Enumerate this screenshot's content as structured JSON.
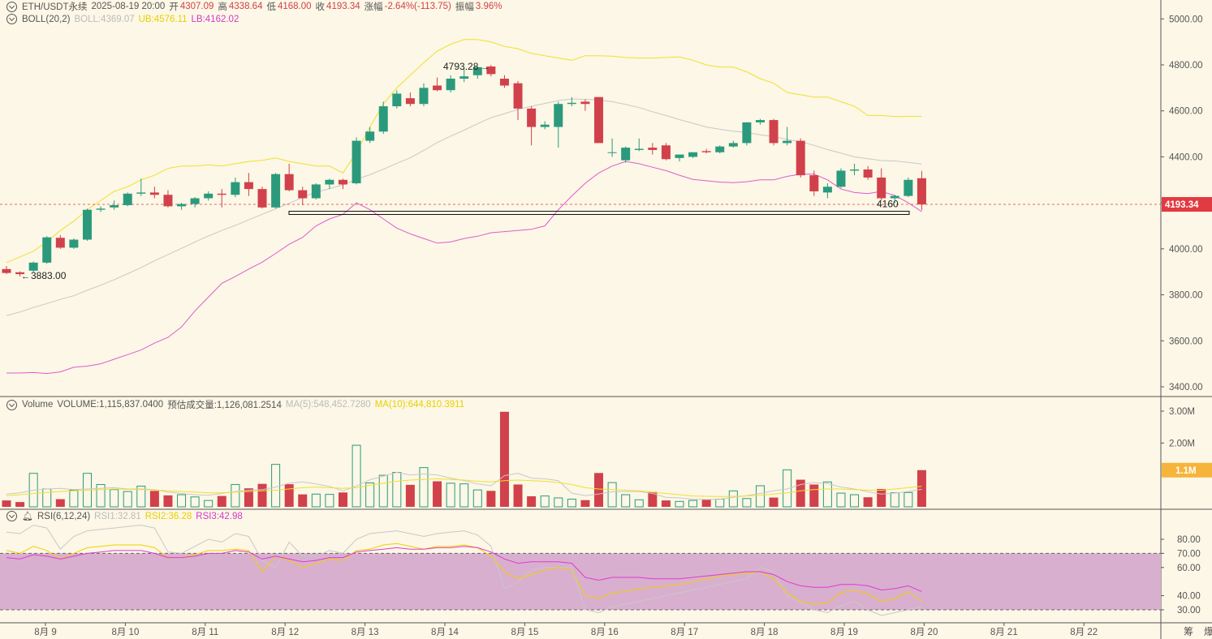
{
  "header": {
    "symbol": "ETH/USDT永续",
    "datetime": "2025-08-19 20:00",
    "open_label": "开",
    "open": "4307.09",
    "high_label": "高",
    "high": "4338.64",
    "low_label": "低",
    "low": "4168.00",
    "close_label": "收",
    "close": "4193.34",
    "change_label": "涨幅",
    "change": "-2.64%(-113.75)",
    "amp_label": "振幅",
    "amp": "3.96%"
  },
  "boll": {
    "label": "BOLL(20,2)",
    "mid": "BOLL:4369.07",
    "ub": "UB:4576.11",
    "lb": "LB:4162.02"
  },
  "volume": {
    "label": "Volume",
    "vol": "VOLUME:1,115,837.0400",
    "est": "预估成交量:1,126,081.2514",
    "ma5": "MA(5):548,452.7280",
    "ma10": "MA(10):644,810.3911"
  },
  "rsi": {
    "label": "RSI(6,12,24)",
    "r1": "RSI1:32.81",
    "r2": "RSI2:36.28",
    "r3": "RSI3:42.98"
  },
  "colors": {
    "up": "#2b9a7c",
    "down": "#d1414b",
    "mid": "#c8c8c8",
    "ub": "#f0e030",
    "lb": "#de5bd2",
    "price_tag": "#e23a42",
    "vol_tag": "#f6b43a",
    "rsi_band": "#d9afcf",
    "rsi1": "#c8c8c8",
    "rsi2": "#f0d000",
    "rsi3": "#de3bd0",
    "bg": "#fcf7e6"
  },
  "chart_data": {
    "type": "candlestick",
    "price_axis": {
      "ylim": [
        3380,
        5050
      ],
      "ticks": [
        "5000.00",
        "4800.00",
        "4600.00",
        "4400.00",
        "4200.00",
        "4000.00",
        "3800.00",
        "3600.00",
        "3400.00"
      ]
    },
    "volume_axis": {
      "ylim": [
        0,
        3100000
      ],
      "ticks": [
        "3.00M",
        "2.00M"
      ],
      "current_label": "1.1M"
    },
    "rsi_axis": {
      "ylim": [
        20,
        90
      ],
      "ticks": [
        "80.00",
        "70.00",
        "60.00",
        "40.00",
        "30.00"
      ],
      "band": [
        30,
        70
      ]
    },
    "x_labels": [
      "8月 9",
      "8月 10",
      "8月 11",
      "8月 12",
      "8月 13",
      "8月 14",
      "8月 15",
      "8月 16",
      "8月 17",
      "8月 18",
      "8月 19",
      "8月 20",
      "8月 21",
      "8月 22"
    ],
    "right_bottom_labels": [
      "筹",
      "爆"
    ],
    "current_price": "4193.34",
    "annotations": {
      "high": "4793.28",
      "low": "3883.00",
      "support_label": "4160"
    },
    "candles": [
      [
        3912,
        3925,
        3890,
        3895
      ],
      [
        3898,
        3902,
        3880,
        3890
      ],
      [
        3905,
        3945,
        3900,
        3940
      ],
      [
        3940,
        4055,
        3935,
        4050
      ],
      [
        4048,
        4060,
        4000,
        4005
      ],
      [
        4005,
        4045,
        4000,
        4040
      ],
      [
        4040,
        4175,
        4035,
        4170
      ],
      [
        4170,
        4185,
        4160,
        4175
      ],
      [
        4180,
        4210,
        4170,
        4190
      ],
      [
        4190,
        4245,
        4185,
        4240
      ],
      [
        4240,
        4305,
        4230,
        4245
      ],
      [
        4245,
        4270,
        4220,
        4235
      ],
      [
        4235,
        4255,
        4180,
        4185
      ],
      [
        4185,
        4200,
        4170,
        4195
      ],
      [
        4195,
        4225,
        4180,
        4220
      ],
      [
        4220,
        4250,
        4210,
        4240
      ],
      [
        4240,
        4260,
        4180,
        4235
      ],
      [
        4235,
        4310,
        4225,
        4290
      ],
      [
        4290,
        4330,
        4230,
        4260
      ],
      [
        4260,
        4270,
        4175,
        4180
      ],
      [
        4180,
        4330,
        4175,
        4325
      ],
      [
        4325,
        4370,
        4250,
        4255
      ],
      [
        4255,
        4270,
        4190,
        4220
      ],
      [
        4220,
        4285,
        4215,
        4280
      ],
      [
        4280,
        4305,
        4260,
        4300
      ],
      [
        4300,
        4305,
        4260,
        4280
      ],
      [
        4285,
        4485,
        4280,
        4470
      ],
      [
        4470,
        4530,
        4460,
        4510
      ],
      [
        4510,
        4640,
        4500,
        4620
      ],
      [
        4620,
        4690,
        4610,
        4675
      ],
      [
        4655,
        4680,
        4620,
        4630
      ],
      [
        4630,
        4720,
        4620,
        4700
      ],
      [
        4710,
        4745,
        4685,
        4690
      ],
      [
        4690,
        4755,
        4680,
        4740
      ],
      [
        4740,
        4785,
        4725,
        4750
      ],
      [
        4755,
        4790,
        4740,
        4790
      ],
      [
        4793,
        4800,
        4750,
        4760
      ],
      [
        4740,
        4755,
        4700,
        4710
      ],
      [
        4720,
        4730,
        4560,
        4610
      ],
      [
        4610,
        4620,
        4450,
        4530
      ],
      [
        4530,
        4555,
        4520,
        4540
      ],
      [
        4530,
        4640,
        4440,
        4630
      ],
      [
        4630,
        4660,
        4620,
        4635
      ],
      [
        4640,
        4650,
        4600,
        4630
      ],
      [
        4660,
        4660,
        4460,
        4460
      ],
      [
        4420,
        4480,
        4400,
        4420
      ],
      [
        4385,
        4445,
        4375,
        4440
      ],
      [
        4430,
        4480,
        4425,
        4435
      ],
      [
        4440,
        4460,
        4410,
        4430
      ],
      [
        4450,
        4460,
        4385,
        4390
      ],
      [
        4395,
        4410,
        4380,
        4410
      ],
      [
        4400,
        4420,
        4395,
        4420
      ],
      [
        4425,
        4435,
        4415,
        4420
      ],
      [
        4420,
        4450,
        4415,
        4445
      ],
      [
        4445,
        4470,
        4440,
        4460
      ],
      [
        4460,
        4550,
        4450,
        4550
      ],
      [
        4550,
        4565,
        4540,
        4560
      ],
      [
        4560,
        4565,
        4450,
        4460
      ],
      [
        4460,
        4530,
        4450,
        4470
      ],
      [
        4470,
        4480,
        4310,
        4320
      ],
      [
        4320,
        4340,
        4230,
        4250
      ],
      [
        4245,
        4285,
        4220,
        4270
      ],
      [
        4270,
        4350,
        4265,
        4340
      ],
      [
        4340,
        4370,
        4320,
        4345
      ],
      [
        4345,
        4360,
        4300,
        4310
      ],
      [
        4310,
        4350,
        4210,
        4220
      ],
      [
        4220,
        4235,
        4200,
        4230
      ],
      [
        4230,
        4310,
        4225,
        4300
      ],
      [
        4307,
        4339,
        4168,
        4193
      ]
    ],
    "boll_mid": [
      3710,
      3725,
      3745,
      3762,
      3780,
      3796,
      3820,
      3842,
      3866,
      3892,
      3918,
      3948,
      3975,
      4002,
      4030,
      4056,
      4080,
      4102,
      4126,
      4150,
      4174,
      4198,
      4224,
      4246,
      4262,
      4278,
      4302,
      4322,
      4346,
      4372,
      4396,
      4428,
      4462,
      4490,
      4516,
      4544,
      4570,
      4588,
      4606,
      4620,
      4632,
      4645,
      4652,
      4650,
      4648,
      4640,
      4628,
      4614,
      4596,
      4580,
      4562,
      4546,
      4530,
      4520,
      4512,
      4506,
      4496,
      4488,
      4476,
      4466,
      4450,
      4432,
      4416,
      4400,
      4392,
      4384,
      4382,
      4376,
      4369
    ],
    "boll_ub": [
      3940,
      3965,
      3990,
      4030,
      4080,
      4120,
      4170,
      4210,
      4250,
      4270,
      4300,
      4320,
      4350,
      4360,
      4360,
      4365,
      4360,
      4370,
      4380,
      4385,
      4395,
      4380,
      4370,
      4360,
      4360,
      4330,
      4420,
      4530,
      4630,
      4700,
      4755,
      4810,
      4860,
      4890,
      4910,
      4910,
      4900,
      4880,
      4870,
      4850,
      4840,
      4830,
      4820,
      4840,
      4840,
      4838,
      4832,
      4830,
      4830,
      4832,
      4835,
      4820,
      4800,
      4790,
      4790,
      4770,
      4740,
      4720,
      4680,
      4670,
      4660,
      4660,
      4640,
      4620,
      4580,
      4580,
      4575,
      4576,
      4576
    ],
    "boll_lb": [
      3460,
      3460,
      3462,
      3458,
      3465,
      3485,
      3490,
      3500,
      3520,
      3540,
      3560,
      3590,
      3615,
      3660,
      3730,
      3790,
      3850,
      3880,
      3912,
      3942,
      3980,
      4020,
      4050,
      4100,
      4130,
      4150,
      4200,
      4170,
      4130,
      4090,
      4065,
      4045,
      4025,
      4030,
      4045,
      4055,
      4070,
      4075,
      4080,
      4085,
      4100,
      4170,
      4230,
      4285,
      4330,
      4360,
      4380,
      4370,
      4355,
      4340,
      4320,
      4302,
      4296,
      4290,
      4288,
      4292,
      4300,
      4300,
      4315,
      4325,
      4325,
      4300,
      4260,
      4245,
      4240,
      4250,
      4232,
      4200,
      4162
    ],
    "volume": [
      200000,
      150000,
      1050000,
      560000,
      240000,
      520000,
      1050000,
      700000,
      540000,
      480000,
      650000,
      500000,
      360000,
      380000,
      310000,
      200000,
      340000,
      700000,
      580000,
      720000,
      1330000,
      710000,
      390000,
      400000,
      390000,
      450000,
      1930000,
      750000,
      990000,
      1080000,
      690000,
      1230000,
      800000,
      740000,
      720000,
      530000,
      500000,
      2980000,
      700000,
      330000,
      340000,
      280000,
      240000,
      210000,
      1060000,
      760000,
      380000,
      220000,
      470000,
      200000,
      170000,
      200000,
      230000,
      240000,
      500000,
      260000,
      660000,
      290000,
      1160000,
      850000,
      700000,
      780000,
      430000,
      380000,
      300000,
      560000,
      440000,
      450000,
      1150000
    ],
    "vol_ma5": [
      400000,
      440000,
      520000,
      560000,
      580000,
      540000,
      560000,
      580000,
      600000,
      560000,
      560000,
      540000,
      460000,
      420000,
      380000,
      360000,
      420000,
      480000,
      520000,
      540000,
      620000,
      740000,
      780000,
      720000,
      640000,
      500000,
      650000,
      850000,
      960000,
      1080000,
      1000000,
      1030000,
      1000000,
      900000,
      820000,
      720000,
      660000,
      980000,
      1050000,
      900000,
      880000,
      820000,
      430000,
      350000,
      400000,
      470000,
      480000,
      480000,
      420000,
      300000,
      280000,
      240000,
      230000,
      240000,
      300000,
      350000,
      420000,
      500000,
      560000,
      700000,
      760000,
      730000,
      620000,
      560000,
      470000,
      400000,
      430000,
      480000,
      550000
    ],
    "vol_ma10": [
      350000,
      380000,
      420000,
      450000,
      480000,
      500000,
      520000,
      540000,
      560000,
      550000,
      540000,
      530000,
      500000,
      480000,
      460000,
      440000,
      440000,
      460000,
      480000,
      500000,
      520000,
      560000,
      600000,
      620000,
      600000,
      580000,
      600000,
      680000,
      740000,
      800000,
      840000,
      860000,
      880000,
      860000,
      840000,
      800000,
      780000,
      820000,
      840000,
      820000,
      800000,
      760000,
      700000,
      600000,
      560000,
      540000,
      520000,
      500000,
      460000,
      420000,
      380000,
      340000,
      330000,
      320000,
      330000,
      340000,
      360000,
      400000,
      440000,
      500000,
      540000,
      560000,
      560000,
      540000,
      520000,
      520000,
      560000,
      600000,
      644000
    ],
    "rsi1": [
      85,
      84,
      90,
      88,
      73,
      82,
      86,
      87,
      88,
      89,
      90,
      88,
      71,
      70,
      75,
      80,
      78,
      84,
      82,
      65,
      60,
      78,
      68,
      68,
      72,
      70,
      80,
      84,
      85,
      86,
      84,
      82,
      84,
      85,
      86,
      83,
      75,
      45,
      50,
      58,
      60,
      60,
      60,
      30,
      28,
      32,
      34,
      36,
      38,
      40,
      42,
      44,
      46,
      48,
      50,
      52,
      60,
      57,
      40,
      35,
      30,
      28,
      33,
      36,
      30,
      26,
      28,
      30,
      32
    ],
    "rsi2": [
      72,
      70,
      75,
      72,
      66,
      70,
      74,
      75,
      76,
      76,
      76,
      74,
      67,
      67,
      69,
      72,
      72,
      73,
      72,
      57,
      68,
      65,
      60,
      63,
      66,
      65,
      72,
      73,
      76,
      77,
      75,
      73,
      75,
      75,
      76,
      74,
      68,
      57,
      52,
      55,
      58,
      60,
      58,
      40,
      38,
      42,
      43,
      45,
      46,
      47,
      48,
      50,
      52,
      54,
      55,
      56,
      57,
      52,
      42,
      36,
      34,
      35,
      42,
      44,
      41,
      36,
      38,
      43,
      36
    ],
    "rsi3": [
      67,
      66,
      69,
      68,
      66,
      68,
      70,
      71,
      72,
      72,
      72,
      70,
      67,
      67,
      68,
      70,
      70,
      72,
      71,
      66,
      68,
      66,
      64,
      65,
      67,
      67,
      71,
      72,
      73,
      74,
      73,
      73,
      74,
      74,
      75,
      74,
      71,
      66,
      63,
      64,
      64,
      64,
      63,
      53,
      51,
      53,
      53,
      53,
      52,
      52,
      52,
      53,
      54,
      55,
      56,
      57,
      57,
      55,
      50,
      47,
      46,
      46,
      48,
      48,
      47,
      44,
      45,
      47,
      43
    ]
  }
}
